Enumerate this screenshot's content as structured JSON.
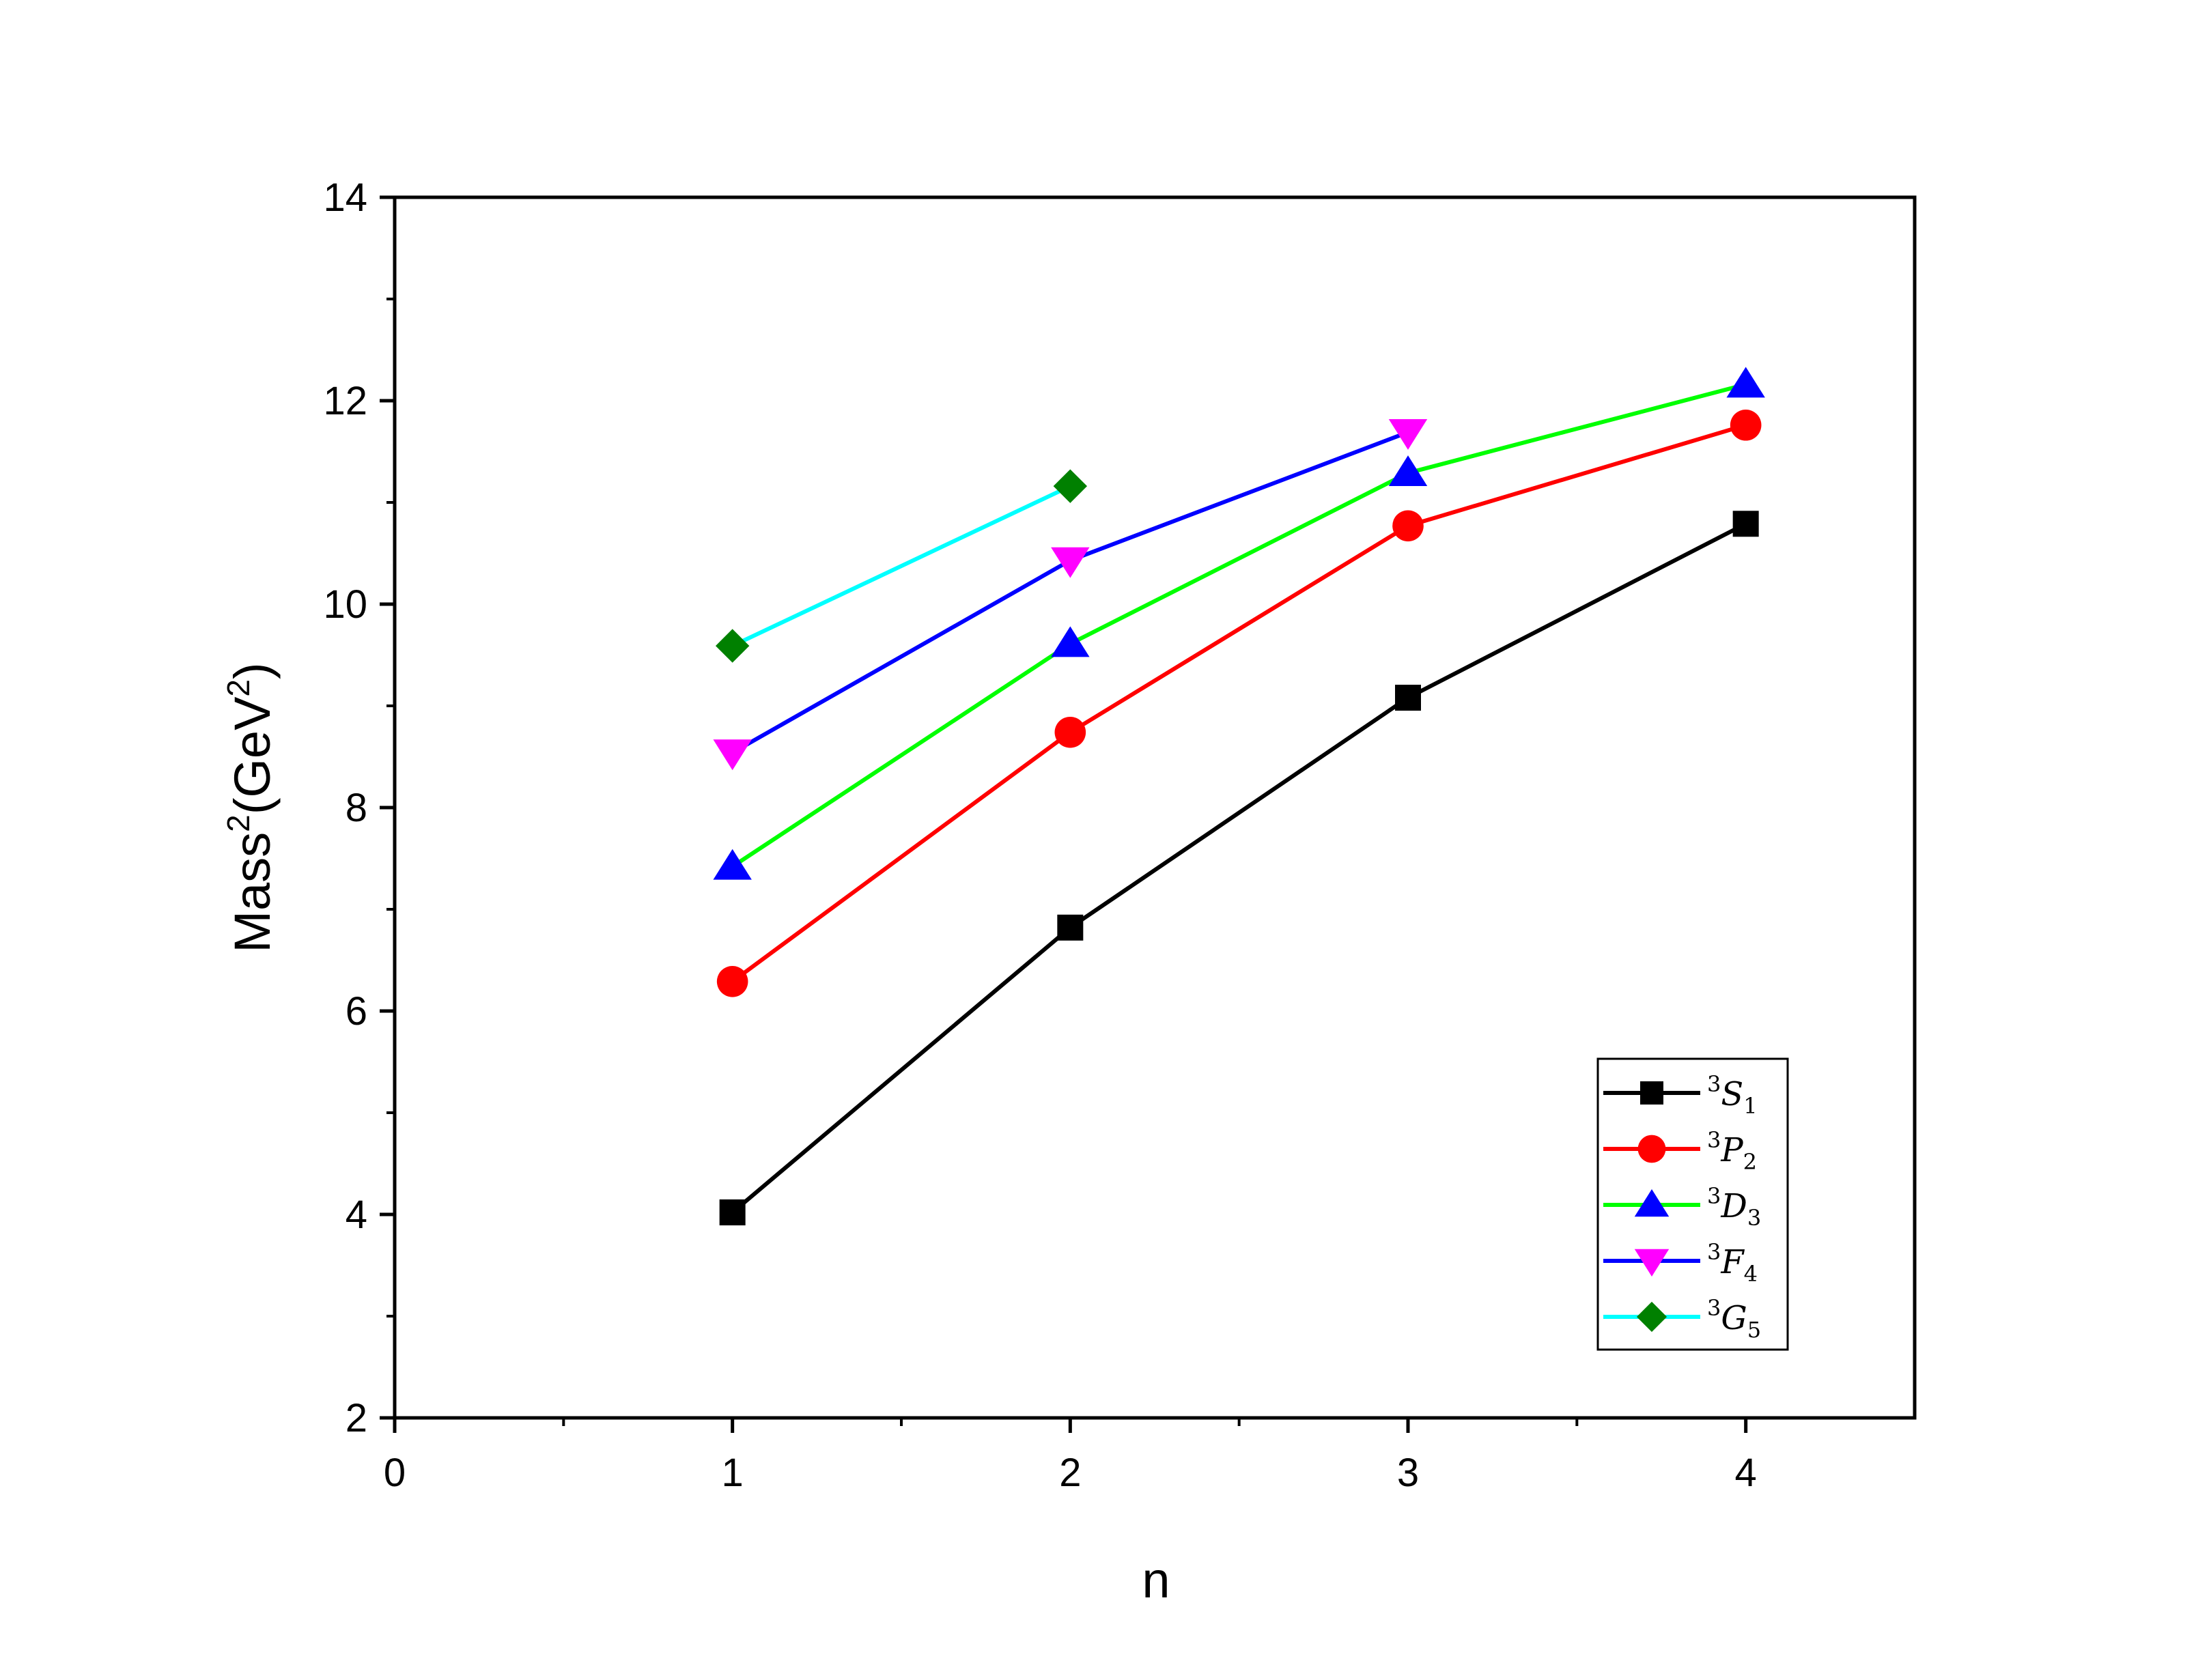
{
  "chart_data": {
    "type": "line",
    "xlabel": "n",
    "ylabel": "Mass",
    "ylabel_sup": "2",
    "ylabel_unit": "(GeV",
    "ylabel_unit_sup": "2",
    "ylabel_close": ")",
    "xlim": [
      0,
      4.5
    ],
    "ylim": [
      2,
      14
    ],
    "xticks": [
      0,
      1,
      2,
      3,
      4
    ],
    "xtick_labels": [
      "0",
      "1",
      "2",
      "3",
      "4"
    ],
    "yticks": [
      2,
      4,
      6,
      8,
      10,
      12,
      14
    ],
    "ytick_labels": [
      "2",
      "4",
      "6",
      "8",
      "10",
      "12",
      "14"
    ],
    "grid": false,
    "legend_position": "bottom-right",
    "series": [
      {
        "name": "3S1",
        "sup": "3",
        "letter": "S",
        "sub": "1",
        "line_color": "#000000",
        "marker_color": "#000000",
        "marker": "square",
        "x": [
          1,
          2,
          3,
          4
        ],
        "y": [
          4.02,
          6.82,
          9.08,
          10.79
        ]
      },
      {
        "name": "3P2",
        "sup": "3",
        "letter": "P",
        "sub": "2",
        "line_color": "#ff0000",
        "marker_color": "#ff0000",
        "marker": "circle",
        "x": [
          1,
          2,
          3,
          4
        ],
        "y": [
          6.29,
          8.74,
          10.77,
          11.76
        ]
      },
      {
        "name": "3D3",
        "sup": "3",
        "letter": "D",
        "sub": "3",
        "line_color": "#00ff00",
        "marker_color": "#0000ff",
        "marker": "triangle-up",
        "x": [
          1,
          2,
          3,
          4
        ],
        "y": [
          7.42,
          9.61,
          11.29,
          12.16
        ]
      },
      {
        "name": "3F4",
        "sup": "3",
        "letter": "F",
        "sub": "4",
        "line_color": "#0000ff",
        "marker_color": "#ff00ff",
        "marker": "triangle-down",
        "x": [
          1,
          2,
          3
        ],
        "y": [
          8.54,
          10.43,
          11.69
        ]
      },
      {
        "name": "3G5",
        "sup": "3",
        "letter": "G",
        "sub": "5",
        "line_color": "#00ffff",
        "marker_color": "#008000",
        "marker": "diamond",
        "x": [
          1,
          2
        ],
        "y": [
          9.59,
          11.16
        ]
      }
    ]
  }
}
